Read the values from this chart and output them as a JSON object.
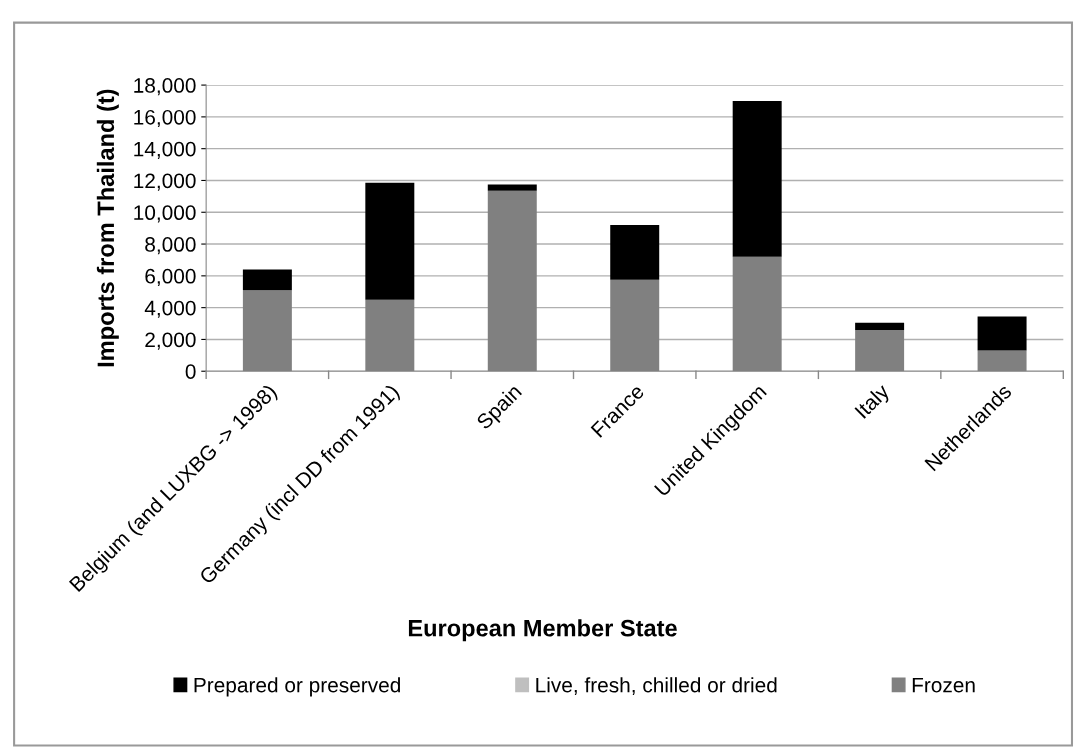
{
  "chart_data": {
    "type": "bar",
    "stacked": true,
    "xlabel": "European Member State",
    "ylabel": "Imports from Thailand (t)",
    "categories": [
      "Belgium (and LUXBG -> 1998)",
      "Germany (incl DD from 1991)",
      "Spain",
      "France",
      "United Kingdom",
      "Italy",
      "Netherlands"
    ],
    "series": [
      {
        "name": "Frozen",
        "color": "#808080",
        "values": [
          5100,
          4500,
          11350,
          5750,
          7200,
          2600,
          1300
        ]
      },
      {
        "name": "Live, fresh, chilled or dried",
        "color": "#bfbfbf",
        "values": [
          0,
          0,
          0,
          0,
          0,
          0,
          0
        ]
      },
      {
        "name": "Prepared or preserved",
        "color": "#000000",
        "values": [
          1300,
          7350,
          400,
          3450,
          9800,
          450,
          2150
        ]
      }
    ],
    "ylim": [
      0,
      18000
    ],
    "yticks": [
      {
        "value": 0,
        "label": "0"
      },
      {
        "value": 2000,
        "label": "2,000"
      },
      {
        "value": 4000,
        "label": "4,000"
      },
      {
        "value": 6000,
        "label": "6,000"
      },
      {
        "value": 8000,
        "label": "8,000"
      },
      {
        "value": 10000,
        "label": "10,000"
      },
      {
        "value": 12000,
        "label": "12,000"
      },
      {
        "value": 14000,
        "label": "14,000"
      },
      {
        "value": 16000,
        "label": "16,000"
      },
      {
        "value": 18000,
        "label": "18,000"
      }
    ],
    "grid": "y",
    "legend": "bottom"
  }
}
